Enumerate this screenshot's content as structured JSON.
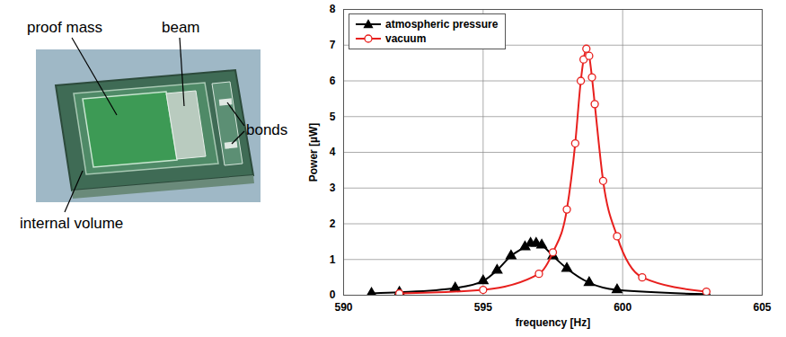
{
  "chart_data": {
    "type": "line",
    "xlabel": "frequency [Hz]",
    "ylabel": "Power [µW]",
    "xlim": [
      590,
      605
    ],
    "xticks": [
      590,
      595,
      600,
      605
    ],
    "ylim": [
      0,
      8
    ],
    "yticks": [
      0,
      1,
      2,
      3,
      4,
      5,
      6,
      7,
      8
    ],
    "grid": true,
    "legend": "upper left",
    "series": [
      {
        "name": "atmospheric pressure",
        "color": "#000000",
        "marker": "triangle",
        "line_style": "solid",
        "x": [
          591,
          592,
          594,
          595,
          595.5,
          596,
          596.5,
          596.7,
          596.9,
          597.1,
          597.5,
          598,
          598.8,
          599.8,
          603
        ],
        "values": [
          0.05,
          0.08,
          0.2,
          0.4,
          0.7,
          1.1,
          1.35,
          1.45,
          1.45,
          1.4,
          1.1,
          0.75,
          0.35,
          0.15,
          0.03
        ]
      },
      {
        "name": "vacuum",
        "color": "#e8201e",
        "marker": "open-circle",
        "line_style": "solid",
        "x": [
          592,
          595,
          597,
          597.5,
          598,
          598.3,
          598.5,
          598.6,
          598.7,
          598.8,
          598.9,
          599,
          599.3,
          599.8,
          600.7,
          603
        ],
        "values": [
          0.05,
          0.15,
          0.6,
          1.2,
          2.4,
          4.25,
          6.0,
          6.6,
          6.9,
          6.7,
          6.1,
          5.35,
          3.2,
          1.65,
          0.5,
          0.1
        ]
      }
    ]
  },
  "photo": {
    "labels": {
      "proof_mass": "proof mass",
      "beam": "beam",
      "bonds": "bonds",
      "internal_volume": "internal volume"
    }
  }
}
